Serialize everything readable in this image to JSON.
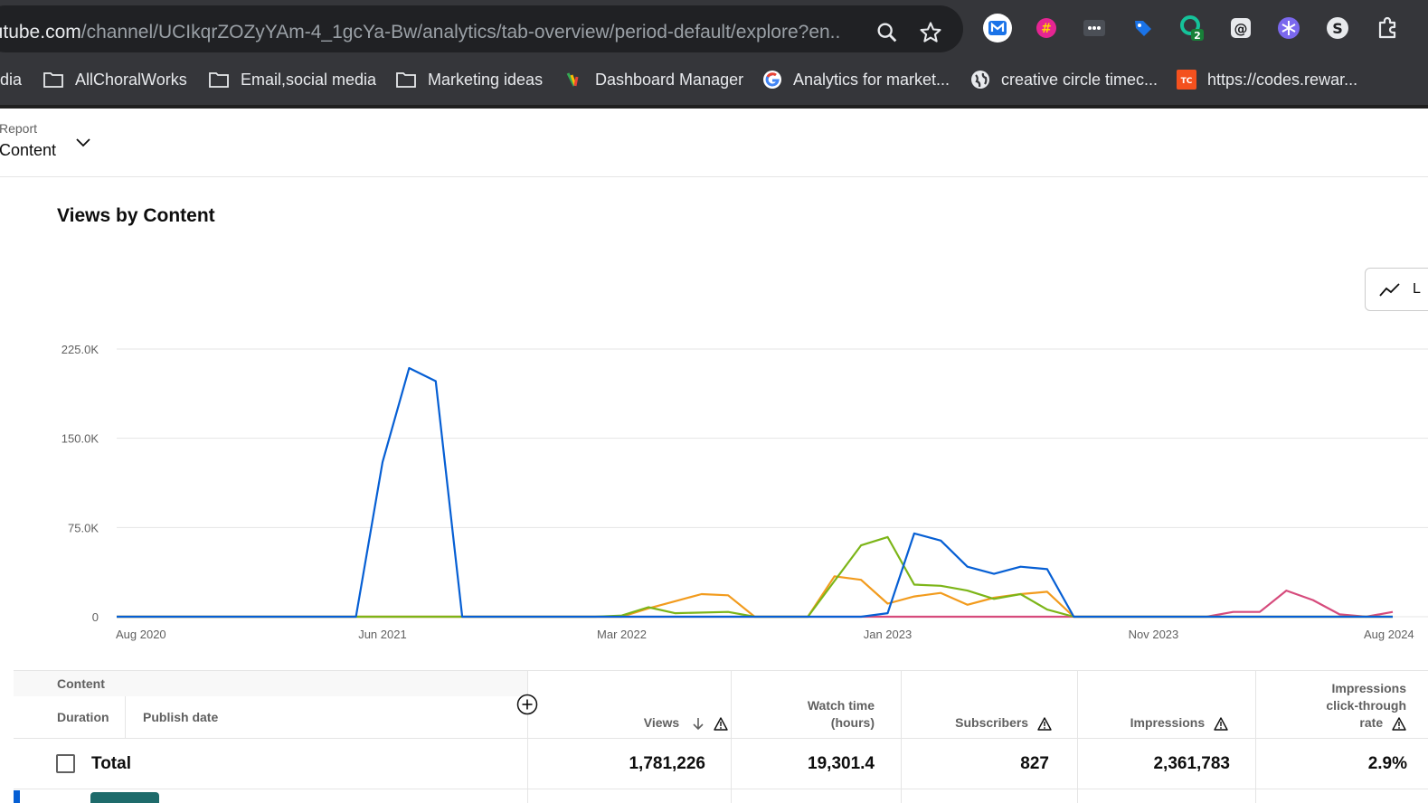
{
  "browser": {
    "url_host": "outube.com",
    "url_path": "/channel/UCIkqrZOZyYAm-4_1gcYa-Bw/analytics/tab-overview/period-default/explore?en...",
    "extensions": [
      {
        "icon": "meet-m-icon",
        "text": "",
        "color": "#1a73e8"
      },
      {
        "icon": "hash-icon",
        "text": "#",
        "color": "#e52592"
      },
      {
        "icon": "dots-icon",
        "text": "•••",
        "color": "#3c4043"
      },
      {
        "icon": "tag-icon",
        "text": "",
        "color": "#1a73e8"
      },
      {
        "icon": "grammar-icon",
        "text": "",
        "color": "#15c39a",
        "badge": "2"
      },
      {
        "icon": "at-icon",
        "text": "@",
        "color": "#e8eaed"
      },
      {
        "icon": "snowflake-icon",
        "text": "",
        "color": "#7b68ee"
      },
      {
        "icon": "s-icon",
        "text": "S",
        "color": "#e8eaed"
      }
    ],
    "bookmarks": [
      {
        "label": "dia",
        "icon": "none"
      },
      {
        "label": "AllChoralWorks",
        "icon": "folder-icon"
      },
      {
        "label": "Email,social media",
        "icon": "folder-icon"
      },
      {
        "label": "Marketing ideas",
        "icon": "folder-icon"
      },
      {
        "label": "Dashboard Manager",
        "icon": "dashboard-icon"
      },
      {
        "label": "Analytics for market...",
        "icon": "google-icon"
      },
      {
        "label": "creative circle timec...",
        "icon": "globe-icon"
      },
      {
        "label": "https://codes.rewar...",
        "icon": "tc-icon",
        "icon_text": "TC"
      }
    ]
  },
  "report": {
    "label": "Report",
    "value": "Content"
  },
  "chart_title": "Views by Content",
  "chart_type_label": "L",
  "chart_data": {
    "type": "line",
    "title": "Views by Content",
    "xlabel": "",
    "ylabel": "",
    "x_ticks": [
      "Aug 2020",
      "Jun 2021",
      "Mar 2022",
      "Jan 2023",
      "Nov 2023",
      "Aug 2024"
    ],
    "y_ticks": [
      "0",
      "75.0K",
      "150.0K",
      "225.0K"
    ],
    "ylim": [
      0,
      225000
    ],
    "grid": true,
    "series": [
      {
        "color": "#065fd4",
        "points": [
          [
            "2020-08",
            0
          ],
          [
            "2021-05",
            0
          ],
          [
            "2021-06",
            130000
          ],
          [
            "2021-07",
            209000
          ],
          [
            "2021-08",
            198000
          ],
          [
            "2021-09",
            0
          ],
          [
            "2022-12",
            0
          ],
          [
            "2023-01",
            3000
          ],
          [
            "2023-02",
            70000
          ],
          [
            "2023-03",
            64000
          ],
          [
            "2023-04",
            42000
          ],
          [
            "2023-05",
            36000
          ],
          [
            "2023-06",
            42000
          ],
          [
            "2023-07",
            40000
          ],
          [
            "2023-08",
            0
          ],
          [
            "2024-08",
            0
          ]
        ]
      },
      {
        "color": "#7cb518",
        "points": [
          [
            "2020-08",
            0
          ],
          [
            "2022-02",
            0
          ],
          [
            "2022-03",
            1000
          ],
          [
            "2022-04",
            8000
          ],
          [
            "2022-05",
            3000
          ],
          [
            "2022-07",
            4000
          ],
          [
            "2022-08",
            0
          ],
          [
            "2022-10",
            0
          ],
          [
            "2022-11",
            30000
          ],
          [
            "2022-12",
            60000
          ],
          [
            "2023-01",
            67000
          ],
          [
            "2023-02",
            27000
          ],
          [
            "2023-03",
            26000
          ],
          [
            "2023-04",
            22000
          ],
          [
            "2023-05",
            15000
          ],
          [
            "2023-06",
            19000
          ],
          [
            "2023-07",
            6000
          ],
          [
            "2023-08",
            0
          ],
          [
            "2024-08",
            0
          ]
        ]
      },
      {
        "color": "#f29b1d",
        "points": [
          [
            "2020-08",
            0
          ],
          [
            "2022-03",
            0
          ],
          [
            "2022-04",
            7000
          ],
          [
            "2022-05",
            13000
          ],
          [
            "2022-06",
            19000
          ],
          [
            "2022-07",
            18000
          ],
          [
            "2022-08",
            0
          ],
          [
            "2022-10",
            0
          ],
          [
            "2022-11",
            34000
          ],
          [
            "2022-12",
            31000
          ],
          [
            "2023-01",
            11000
          ],
          [
            "2023-02",
            17000
          ],
          [
            "2023-03",
            20000
          ],
          [
            "2023-04",
            10000
          ],
          [
            "2023-05",
            16000
          ],
          [
            "2023-06",
            19000
          ],
          [
            "2023-07",
            21000
          ],
          [
            "2023-08",
            0
          ],
          [
            "2024-08",
            0
          ]
        ]
      },
      {
        "color": "#d64b7c",
        "points": [
          [
            "2020-08",
            0
          ],
          [
            "2024-01",
            0
          ],
          [
            "2024-02",
            4000
          ],
          [
            "2024-03",
            4000
          ],
          [
            "2024-04",
            22000
          ],
          [
            "2024-05",
            14000
          ],
          [
            "2024-06",
            2000
          ],
          [
            "2024-07",
            0
          ],
          [
            "2024-08",
            4000
          ]
        ]
      }
    ]
  },
  "table": {
    "content_header": "Content",
    "duration_header": "Duration",
    "publish_date_header": "Publish date",
    "views_header": "Views",
    "watch_time_header_1": "Watch time",
    "watch_time_header_2": "(hours)",
    "subscribers_header": "Subscribers",
    "impressions_header": "Impressions",
    "ctr_header_1": "Impressions",
    "ctr_header_2": "click-through",
    "ctr_header_3": "rate",
    "total": {
      "label": "Total",
      "views": "1,781,226",
      "watch_time": "19,301.4",
      "subscribers": "827",
      "impressions": "2,361,783",
      "ctr": "2.9%"
    }
  }
}
